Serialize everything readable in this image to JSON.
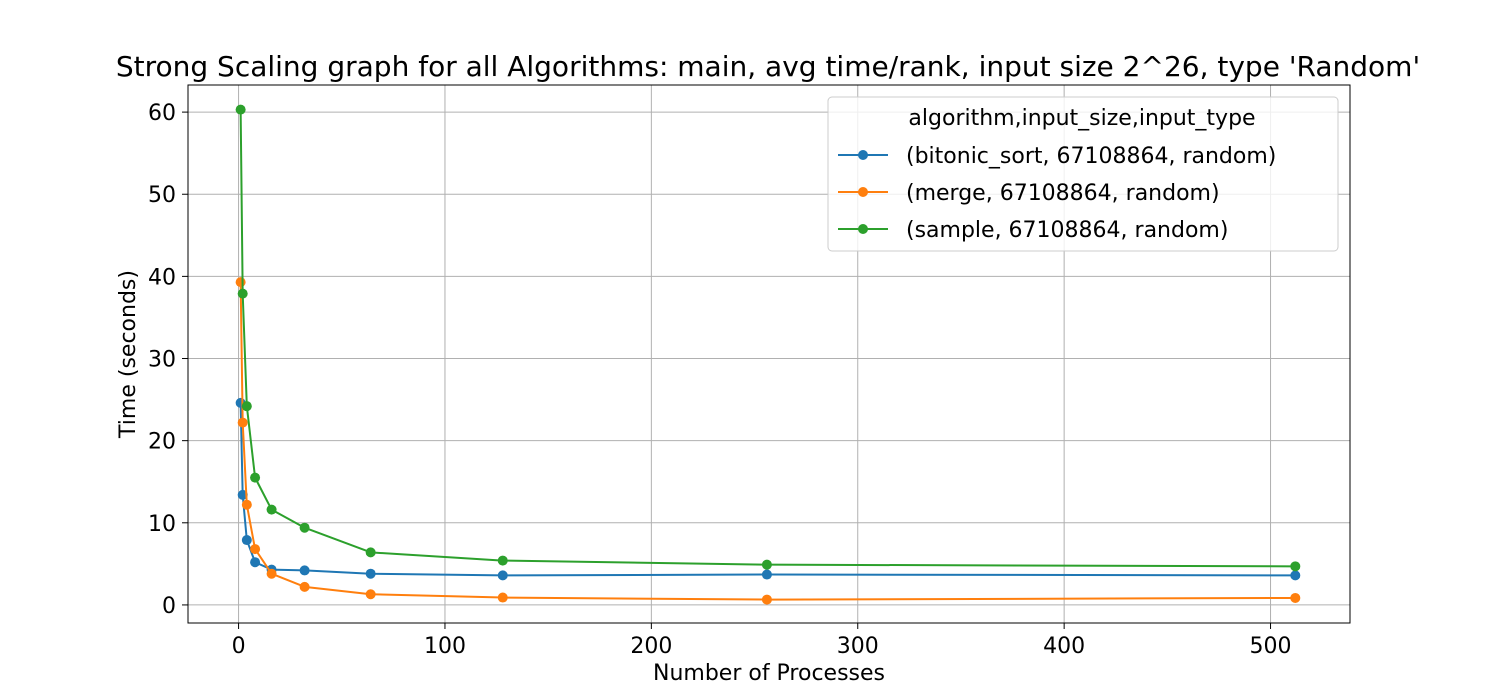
{
  "chart_data": {
    "type": "line",
    "title": "Strong Scaling graph for all Algorithms: main, avg time/rank, input size 2^26, type 'Random'",
    "xlabel": "Number of Processes",
    "ylabel": "Time (seconds)",
    "xlim": [
      -24.5,
      538.5
    ],
    "ylim": [
      -2.2,
      63.3
    ],
    "xticks": [
      0,
      100,
      200,
      300,
      400,
      500
    ],
    "yticks": [
      0,
      10,
      20,
      30,
      40,
      50,
      60
    ],
    "grid": true,
    "legend": {
      "title": "algorithm,input_size,input_type",
      "placement": "top-right"
    },
    "series": [
      {
        "name": "(bitonic_sort, 67108864, random)",
        "color": "#1f77b4",
        "x": [
          1,
          2,
          4,
          8,
          16,
          32,
          64,
          128,
          256,
          512
        ],
        "y": [
          24.6,
          13.4,
          7.9,
          5.2,
          4.3,
          4.2,
          3.8,
          3.6,
          3.7,
          3.6
        ]
      },
      {
        "name": "(merge, 67108864, random)",
        "color": "#ff7f0e",
        "x": [
          1,
          2,
          4,
          8,
          16,
          32,
          64,
          128,
          256,
          512
        ],
        "y": [
          39.3,
          22.2,
          12.2,
          6.8,
          3.8,
          2.2,
          1.3,
          0.9,
          0.65,
          0.85
        ]
      },
      {
        "name": "(sample, 67108864, random)",
        "color": "#2ca02c",
        "x": [
          1,
          2,
          4,
          8,
          16,
          32,
          64,
          128,
          256,
          512
        ],
        "y": [
          60.3,
          37.9,
          24.2,
          15.5,
          11.6,
          9.4,
          6.4,
          5.4,
          4.9,
          4.7
        ]
      }
    ]
  }
}
